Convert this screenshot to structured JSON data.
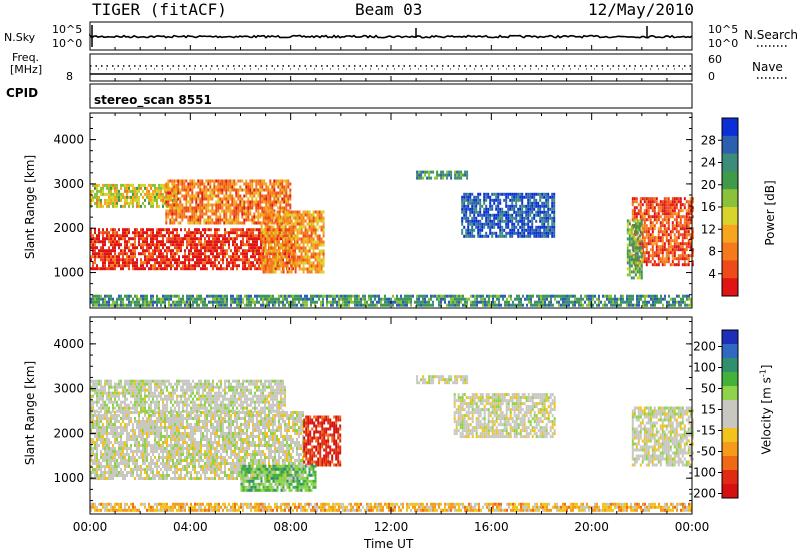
{
  "header": {
    "radar": "TIGER (fitACF)",
    "beam": "Beam 03",
    "date": "12/May/2010"
  },
  "status_panels": {
    "nsky_label": "N.Sky",
    "nsky_ticks": [
      "10^5",
      "10^0"
    ],
    "nsearch_label": "N.Search",
    "nsearch_ticks": [
      "10^5",
      "10^0"
    ],
    "freq_label_line1": "Freq.",
    "freq_label_line2": "[MHz]",
    "freq_ticks": [
      "8"
    ],
    "nave_label": "Nave",
    "nave_ticks": [
      "60",
      "0"
    ],
    "cpid_label": "CPID",
    "cpid_value": "stereo_scan 8551"
  },
  "chart_data": [
    {
      "type": "heatmap",
      "name": "power",
      "ylabel": "Slant Range [km]",
      "yticks": [
        1000,
        2000,
        3000,
        4000
      ],
      "ylim": [
        200,
        4600
      ],
      "xticks": [
        "00:00",
        "04:00",
        "08:00",
        "12:00",
        "16:00",
        "20:00",
        "00:00"
      ],
      "xlim_hours": [
        0,
        24
      ],
      "colorbar": {
        "label": "Power [dB]",
        "ticks": [
          "4",
          "8",
          "12",
          "16",
          "20",
          "24",
          "28"
        ],
        "colors": [
          "#0a2fd8",
          "#2b5fb0",
          "#3c8c7a",
          "#3f9a4a",
          "#8cc23a",
          "#d8d42a",
          "#f7a51f",
          "#f57a1d",
          "#ee4a1a",
          "#e01414"
        ]
      },
      "regions": [
        {
          "t0": 0.0,
          "t1": 8.2,
          "r0": 1100,
          "r1": 2000,
          "level": 0.92
        },
        {
          "t0": 0.0,
          "t1": 3.5,
          "r0": 2500,
          "r1": 3000,
          "level": 0.55
        },
        {
          "t0": 3.0,
          "t1": 8.0,
          "r0": 2100,
          "r1": 3100,
          "level": 0.75
        },
        {
          "t0": 6.8,
          "t1": 9.3,
          "r0": 1000,
          "r1": 2400,
          "level": 0.7
        },
        {
          "t0": 14.8,
          "t1": 18.5,
          "r0": 1800,
          "r1": 2800,
          "level": 0.12
        },
        {
          "t0": 13.0,
          "t1": 15.0,
          "r0": 3100,
          "r1": 3300,
          "level": 0.3
        },
        {
          "t0": 21.6,
          "t1": 24.0,
          "r0": 1200,
          "r1": 2700,
          "level": 0.85
        },
        {
          "t0": 21.4,
          "t1": 22.0,
          "r0": 900,
          "r1": 2200,
          "level": 0.4
        },
        {
          "t0": 0.0,
          "t1": 24.0,
          "r0": 250,
          "r1": 500,
          "level": 0.3
        }
      ]
    },
    {
      "type": "heatmap",
      "name": "velocity",
      "ylabel": "Slant Range [km]",
      "yticks": [
        1000,
        2000,
        3000,
        4000
      ],
      "ylim": [
        200,
        4600
      ],
      "xticks": [
        "00:00",
        "04:00",
        "08:00",
        "12:00",
        "16:00",
        "20:00",
        "00:00"
      ],
      "xlabel": "Time UT",
      "xlim_hours": [
        0,
        24
      ],
      "colorbar": {
        "label": "Velocity [m s",
        "label_sup": "-1",
        "label_end": "]",
        "ticks": [
          "200",
          "100",
          "50",
          "15",
          "-15",
          "-50",
          "-100",
          "-200"
        ],
        "colors": [
          "#1d2fb8",
          "#2f6ac0",
          "#2f8f6e",
          "#44b23a",
          "#8fd34a",
          "#c8c8c0",
          "#c8c8c0",
          "#f2c31c",
          "#f59a1a",
          "#f06a16",
          "#e02a14",
          "#d41010"
        ]
      },
      "regions": [
        {
          "t0": 0.0,
          "t1": 8.5,
          "r0": 1000,
          "r1": 2500,
          "level": 0.0
        },
        {
          "t0": 0.0,
          "t1": 7.8,
          "r0": 2500,
          "r1": 3200,
          "level": 0.05
        },
        {
          "t0": 8.5,
          "t1": 10.0,
          "r0": 1300,
          "r1": 2400,
          "level": -0.8
        },
        {
          "t0": 6.0,
          "t1": 9.0,
          "r0": 700,
          "r1": 1300,
          "level": 0.35
        },
        {
          "t0": 14.5,
          "t1": 18.5,
          "r0": 1900,
          "r1": 2900,
          "level": 0.0
        },
        {
          "t0": 13.0,
          "t1": 15.0,
          "r0": 3100,
          "r1": 3300,
          "level": 0.0
        },
        {
          "t0": 21.6,
          "t1": 24.0,
          "r0": 1300,
          "r1": 2600,
          "level": 0.0
        },
        {
          "t0": 0.0,
          "t1": 24.0,
          "r0": 250,
          "r1": 450,
          "level": -0.3
        }
      ]
    }
  ]
}
